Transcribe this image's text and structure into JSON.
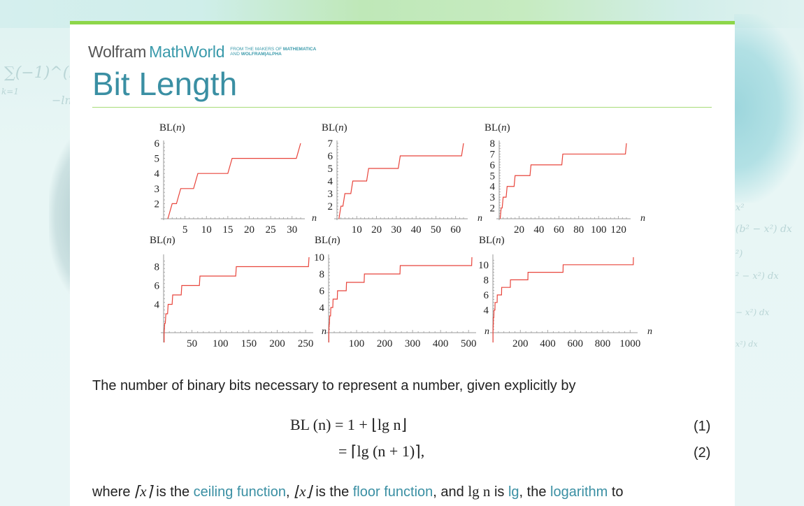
{
  "brand": {
    "wolfram": "Wolfram",
    "mathworld": "MathWorld",
    "tag_line1_prefix": "FROM THE MAKERS OF ",
    "tag_line1_bold": "MATHEMATICA",
    "tag_line2_prefix": "AND ",
    "tag_line2_bold": "WOLFRAM|ALPHA"
  },
  "page": {
    "title": "Bit Length",
    "accent_color": "#8dd64a",
    "title_color": "#3a8fa3",
    "link_color": "#3a8fa3"
  },
  "background": {
    "left_math": "∑(−1)^(k−1)",
    "left_sub": "k=1",
    "left_extra": "−ln",
    "right_math": [
      "x²",
      "(b² − x²)  dx",
      "²)",
      "² − x²)  dx",
      "− x²)  dx",
      "x²)  dx"
    ]
  },
  "chart_data": [
    {
      "type": "line",
      "title": "",
      "ylabel": "BL(n)",
      "xlabel": "n",
      "xlim": [
        0,
        32
      ],
      "ylim": [
        1,
        6
      ],
      "xticks": [
        5,
        10,
        15,
        20,
        25,
        30
      ],
      "yticks": [
        2,
        3,
        4,
        5,
        6
      ],
      "x": [
        1,
        2,
        3,
        4,
        7,
        8,
        15,
        16,
        31,
        32
      ],
      "values": [
        1,
        2,
        2,
        3,
        3,
        4,
        4,
        5,
        5,
        6
      ]
    },
    {
      "type": "line",
      "title": "",
      "ylabel": "BL(n)",
      "xlabel": "n",
      "xlim": [
        0,
        64
      ],
      "ylim": [
        1,
        7
      ],
      "xticks": [
        10,
        20,
        30,
        40,
        50,
        60
      ],
      "yticks": [
        2,
        3,
        4,
        5,
        6,
        7
      ],
      "x": [
        1,
        2,
        3,
        4,
        7,
        8,
        15,
        16,
        31,
        32,
        63,
        64
      ],
      "values": [
        1,
        2,
        2,
        3,
        3,
        4,
        4,
        5,
        5,
        6,
        6,
        7
      ]
    },
    {
      "type": "line",
      "title": "",
      "ylabel": "BL(n)",
      "xlabel": "n",
      "xlim": [
        0,
        128
      ],
      "ylim": [
        1,
        8
      ],
      "xticks": [
        20,
        40,
        60,
        80,
        100,
        120
      ],
      "yticks": [
        2,
        3,
        4,
        5,
        6,
        7,
        8
      ],
      "x": [
        1,
        2,
        3,
        4,
        7,
        8,
        15,
        16,
        31,
        32,
        63,
        64,
        127,
        128
      ],
      "values": [
        1,
        2,
        2,
        3,
        3,
        4,
        4,
        5,
        5,
        6,
        6,
        7,
        7,
        8
      ]
    },
    {
      "type": "line",
      "title": "",
      "ylabel": "BL(n)",
      "xlabel": "n",
      "xlim": [
        0,
        256
      ],
      "ylim": [
        1,
        9
      ],
      "xticks": [
        50,
        100,
        150,
        200,
        250
      ],
      "yticks": [
        4,
        6,
        8
      ],
      "x": [
        1,
        2,
        3,
        4,
        7,
        8,
        15,
        16,
        31,
        32,
        63,
        64,
        127,
        128,
        255,
        256
      ],
      "values": [
        1,
        2,
        2,
        3,
        3,
        4,
        4,
        5,
        5,
        6,
        6,
        7,
        7,
        8,
        8,
        9
      ]
    },
    {
      "type": "line",
      "title": "",
      "ylabel": "BL(n)",
      "xlabel": "n",
      "xlim": [
        0,
        512
      ],
      "ylim": [
        1,
        10
      ],
      "xticks": [
        100,
        200,
        300,
        400,
        500
      ],
      "yticks": [
        4,
        6,
        8,
        10
      ],
      "x": [
        1,
        2,
        3,
        4,
        7,
        8,
        15,
        16,
        31,
        32,
        63,
        64,
        127,
        128,
        255,
        256,
        511,
        512
      ],
      "values": [
        1,
        2,
        2,
        3,
        3,
        4,
        4,
        5,
        5,
        6,
        6,
        7,
        7,
        8,
        8,
        9,
        9,
        10
      ]
    },
    {
      "type": "line",
      "title": "",
      "ylabel": "BL(n)",
      "xlabel": "n",
      "xlim": [
        0,
        1024
      ],
      "ylim": [
        1,
        11
      ],
      "xticks": [
        200,
        400,
        600,
        800,
        1000
      ],
      "yticks": [
        4,
        6,
        8,
        10
      ],
      "x": [
        1,
        2,
        3,
        4,
        7,
        8,
        15,
        16,
        31,
        32,
        63,
        64,
        127,
        128,
        255,
        256,
        511,
        512,
        1023,
        1024
      ],
      "values": [
        1,
        2,
        2,
        3,
        3,
        4,
        4,
        5,
        5,
        6,
        6,
        7,
        7,
        8,
        8,
        9,
        9,
        10,
        10,
        11
      ]
    }
  ],
  "content": {
    "intro": "The number of binary bits necessary to represent a number, given explicitly by",
    "eq1": "BL (n) = 1 + ⌊lg n⌋",
    "eq1_num": "(1)",
    "eq2": "= ⌈lg (n + 1)⌉,",
    "eq2_num": "(2)",
    "para": {
      "t1": "where ",
      "m1": "⌈x⌉",
      "t2": " is the ",
      "link1": "ceiling function",
      "t3": ", ",
      "m2": "⌊x⌋",
      "t4": " is the ",
      "link2": "floor function",
      "t5": ", and ",
      "m3": "lg n",
      "t6": " is ",
      "link3": "lg",
      "t7": ", the ",
      "link4": "logarithm",
      "t8": " to"
    }
  }
}
